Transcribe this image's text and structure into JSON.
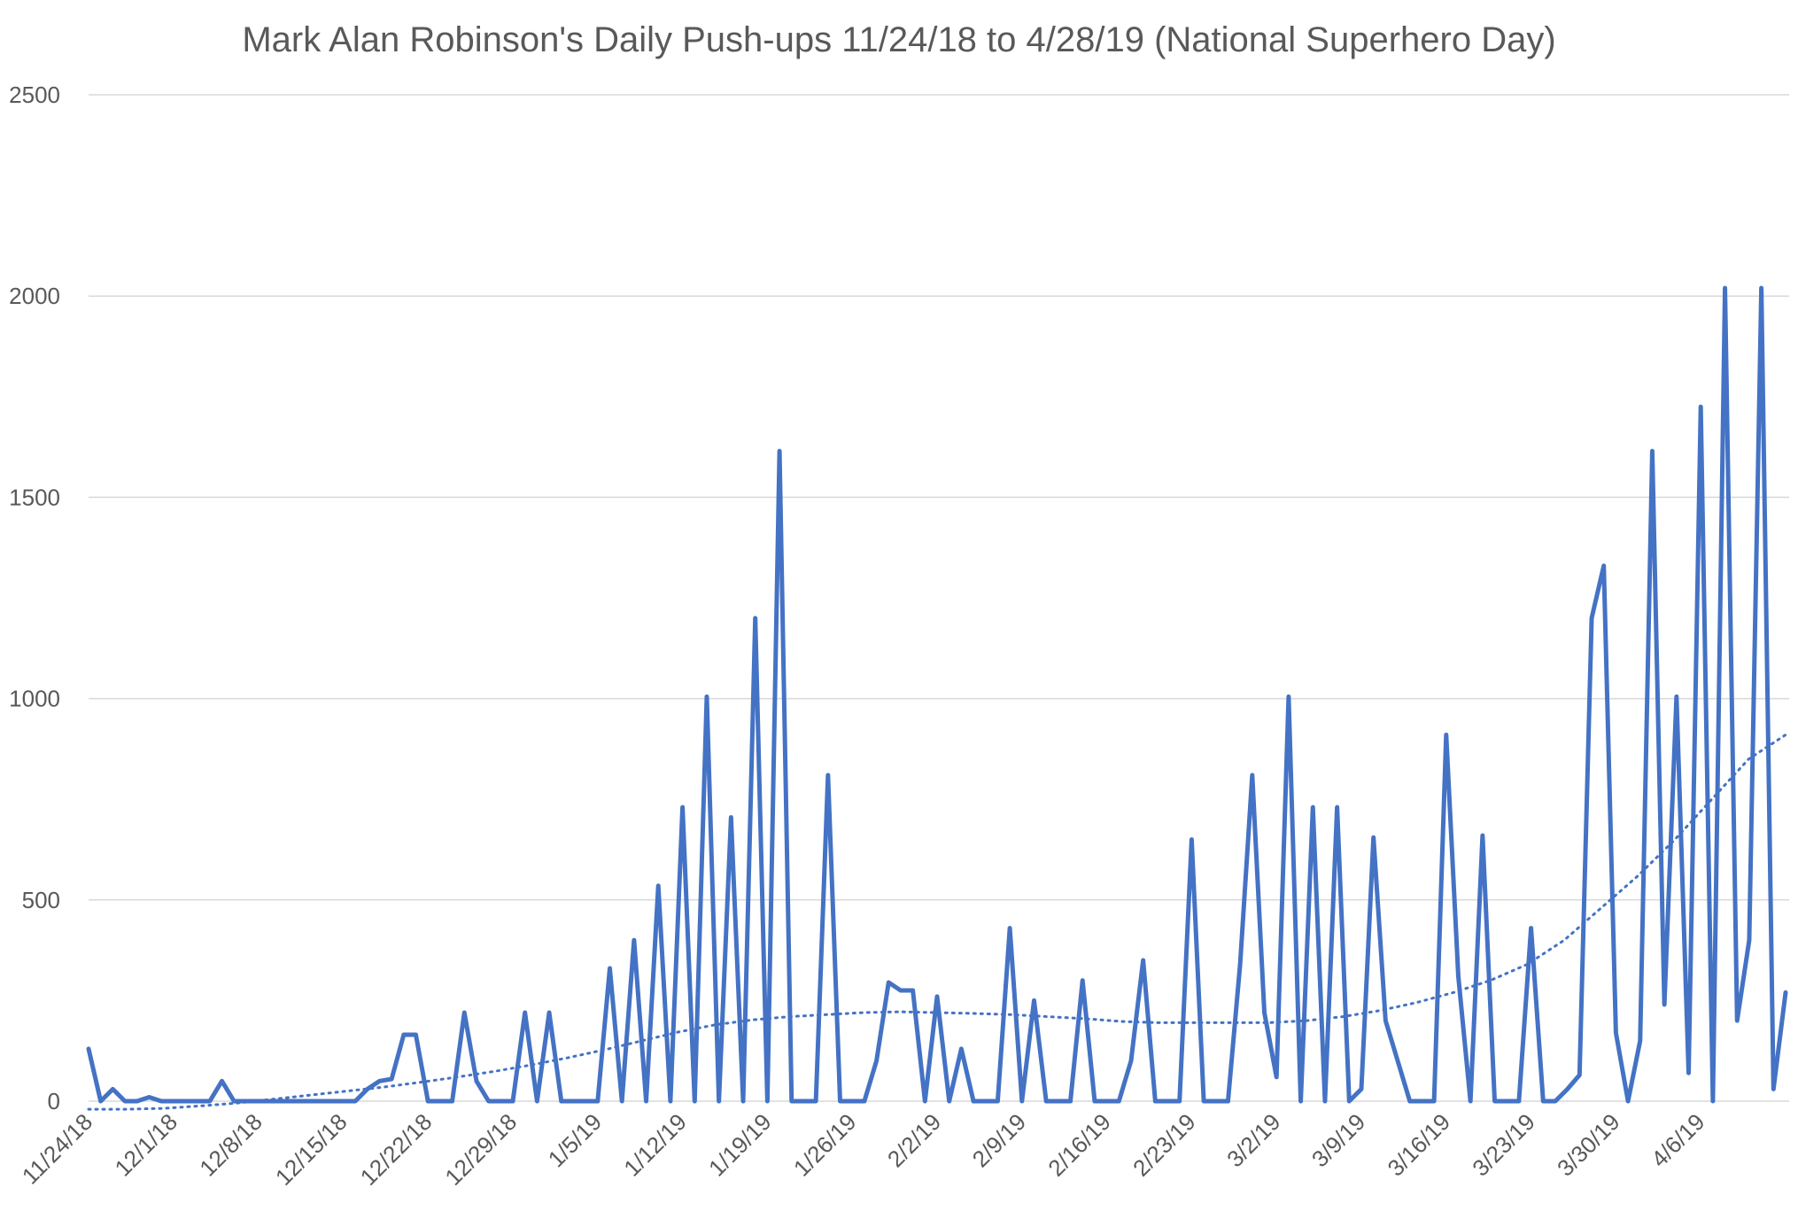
{
  "chart_data": {
    "type": "line",
    "title": "Mark Alan Robinson's Daily Push-ups 11/24/18 to 4/28/19 (National Superhero Day)",
    "xlabel": "",
    "ylabel": "",
    "ylim": [
      0,
      2500
    ],
    "y_ticks": [
      "0",
      "500",
      "1000",
      "1500",
      "2000",
      "2500"
    ],
    "x_ticks": [
      "11/24/18",
      "12/1/18",
      "12/8/18",
      "12/15/18",
      "12/22/18",
      "12/29/18",
      "1/5/19",
      "1/12/19",
      "1/19/19",
      "1/26/19",
      "2/2/19",
      "2/9/19",
      "2/16/19",
      "2/23/19",
      "3/2/19",
      "3/9/19",
      "3/16/19",
      "3/23/19",
      "3/30/19",
      "4/6/19"
    ],
    "grid": true,
    "legend": "none",
    "colors": {
      "series": "#4472c4",
      "grid": "#d9d9d9",
      "text": "#595959"
    },
    "series": [
      {
        "values": [
          130,
          0,
          30,
          0,
          0,
          10,
          0,
          0,
          0,
          0,
          0,
          50,
          0,
          0,
          0,
          0,
          0,
          0,
          0,
          0,
          0,
          0,
          0,
          30,
          50,
          55,
          165,
          165,
          0,
          0,
          0,
          220,
          50,
          0,
          0,
          0,
          220,
          0,
          220,
          0,
          0,
          0,
          0,
          330,
          0,
          400,
          0,
          535,
          0,
          730,
          0,
          1005,
          0,
          705,
          0,
          1200,
          0,
          1615,
          0,
          0,
          0,
          810,
          0,
          0,
          0,
          100,
          295,
          275,
          275,
          0,
          260,
          0,
          130,
          0,
          0,
          0,
          430,
          0,
          250,
          0,
          0,
          0,
          300,
          0,
          0,
          0,
          100,
          350,
          0,
          0,
          0,
          650,
          0,
          0,
          0,
          340,
          810,
          220,
          60,
          1005,
          0,
          730,
          0,
          730,
          0,
          30,
          655,
          200,
          100,
          0,
          0,
          0,
          910,
          310,
          0,
          660,
          0,
          0,
          0,
          430,
          0,
          0,
          30,
          65,
          1200,
          1330,
          170,
          0,
          150,
          1615,
          240,
          1005,
          70,
          1725,
          0,
          2020,
          200,
          400,
          2020,
          30,
          270
        ]
      }
    ],
    "trendline": {
      "style": "dotted",
      "values": [
        -20,
        -20,
        -18,
        -12,
        -5,
        5,
        15,
        25,
        35,
        47,
        60,
        74,
        90,
        108,
        128,
        150,
        172,
        190,
        202,
        210,
        215,
        220,
        222,
        220,
        218,
        215,
        210,
        205,
        198,
        195,
        195,
        195,
        195,
        200,
        210,
        225,
        245,
        270,
        300,
        340,
        400,
        480,
        560,
        650,
        750,
        850,
        910
      ]
    }
  }
}
